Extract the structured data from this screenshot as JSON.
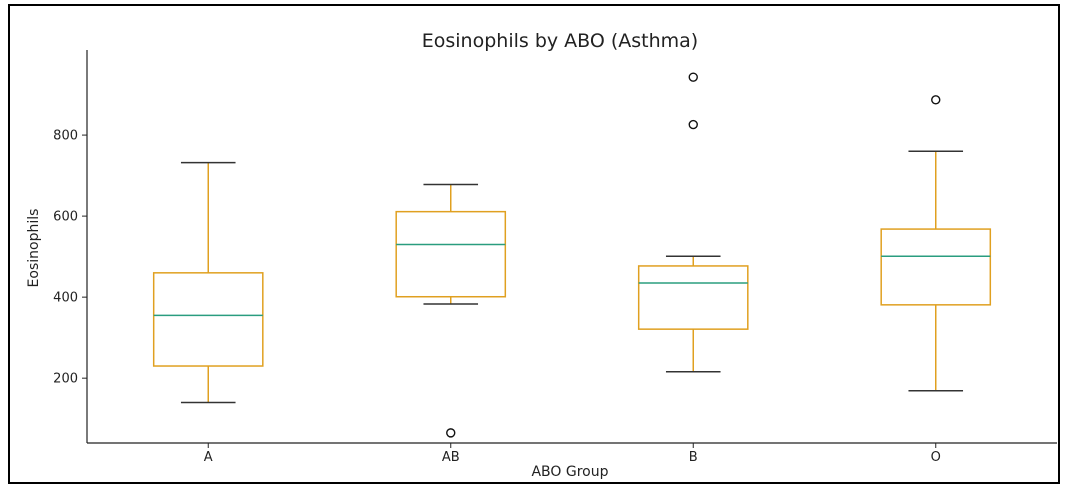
{
  "chart_data": {
    "type": "box",
    "title": "Eosinophils by ABO (Asthma)",
    "xlabel": "ABO Group",
    "ylabel": "Eosinophils",
    "categories": [
      "A",
      "AB",
      "B",
      "O"
    ],
    "yticks": [
      200,
      400,
      600,
      800
    ],
    "ylim": [
      40,
      1010
    ],
    "grid": false,
    "colors": {
      "box": "#E0A020",
      "median": "#2A9D7F",
      "whisker_cap": "#333333",
      "outlier": "#111111",
      "axis": "#222222"
    },
    "boxes": [
      {
        "category": "A",
        "whisker_low": 140,
        "q1": 230,
        "median": 355,
        "q3": 460,
        "whisker_high": 732,
        "outliers": []
      },
      {
        "category": "AB",
        "whisker_low": 383,
        "q1": 401,
        "median": 530,
        "q3": 611,
        "whisker_high": 678,
        "outliers": [
          65
        ]
      },
      {
        "category": "B",
        "whisker_low": 216,
        "q1": 321,
        "median": 435,
        "q3": 477,
        "whisker_high": 501,
        "outliers": [
          826,
          943
        ]
      },
      {
        "category": "O",
        "whisker_low": 169,
        "q1": 381,
        "median": 501,
        "q3": 568,
        "whisker_high": 760,
        "outliers": [
          887
        ]
      }
    ]
  }
}
